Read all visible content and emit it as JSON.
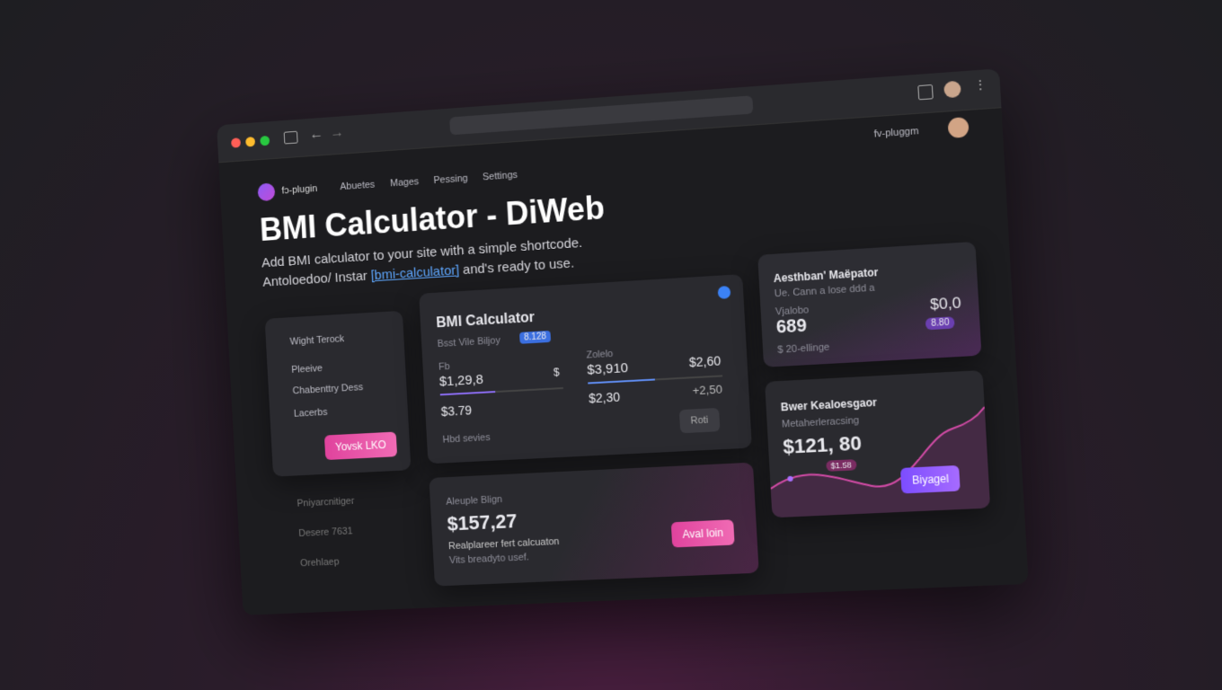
{
  "browser": {
    "account": "fv-pluggm"
  },
  "nav": {
    "brand": "fɔ-plugin",
    "links": [
      "Abuetes",
      "Mages",
      "Pessing",
      "Settings"
    ]
  },
  "header": {
    "title": "BMI Calculator  - DiWeb",
    "subtitle": "Add BMI calculator to your site with a simple shortcode.",
    "note_prefix": "Antoloedoo/ Instar",
    "shortcode": "[bmi-calculator]",
    "note_suffix": "and's ready to use."
  },
  "sidebar": {
    "items": [
      "Wight Terock",
      "Pleeive",
      "Chabenttry Dess",
      "Lacerbs"
    ],
    "button": "Yovsk LKO",
    "footer_items": [
      "Pniyarcnitiger",
      "Desere 7631",
      "Orehlaep"
    ]
  },
  "calculator": {
    "title": "BMI Calculator",
    "subtitle": "Bsst Vile Biljoy",
    "badge": "8.128",
    "left": {
      "label": "Fb",
      "value": "$1,29,8",
      "unit": "$",
      "second": "$3.79",
      "footer": "Hbd sevies"
    },
    "right": {
      "label": "Zolelo",
      "value": "$3,910",
      "value_b": "$2,60",
      "second": "$2,30",
      "second_b": "+2,50",
      "button": "Roti"
    }
  },
  "summary": {
    "label": "Aleuple Blign",
    "value": "$157,27",
    "line1": "Realplareer fert calcuaton",
    "line2": "Vits breadyto usef.",
    "button": "Aval loin"
  },
  "stat_card": {
    "title": "Aesthban' Maëpator",
    "subtitle": "Ue. Cann a lose ddd a",
    "label": "Vjalobo",
    "value": "689",
    "value_b": "$0,0",
    "chip": "8.80",
    "footer": "$ 20-ellinge"
  },
  "trend_card": {
    "title": "Bwer Kealoesgaor",
    "subtitle": "Metaherleracsing",
    "value": "$121, 80",
    "chip": "$1.58",
    "button": "Biyagel"
  }
}
